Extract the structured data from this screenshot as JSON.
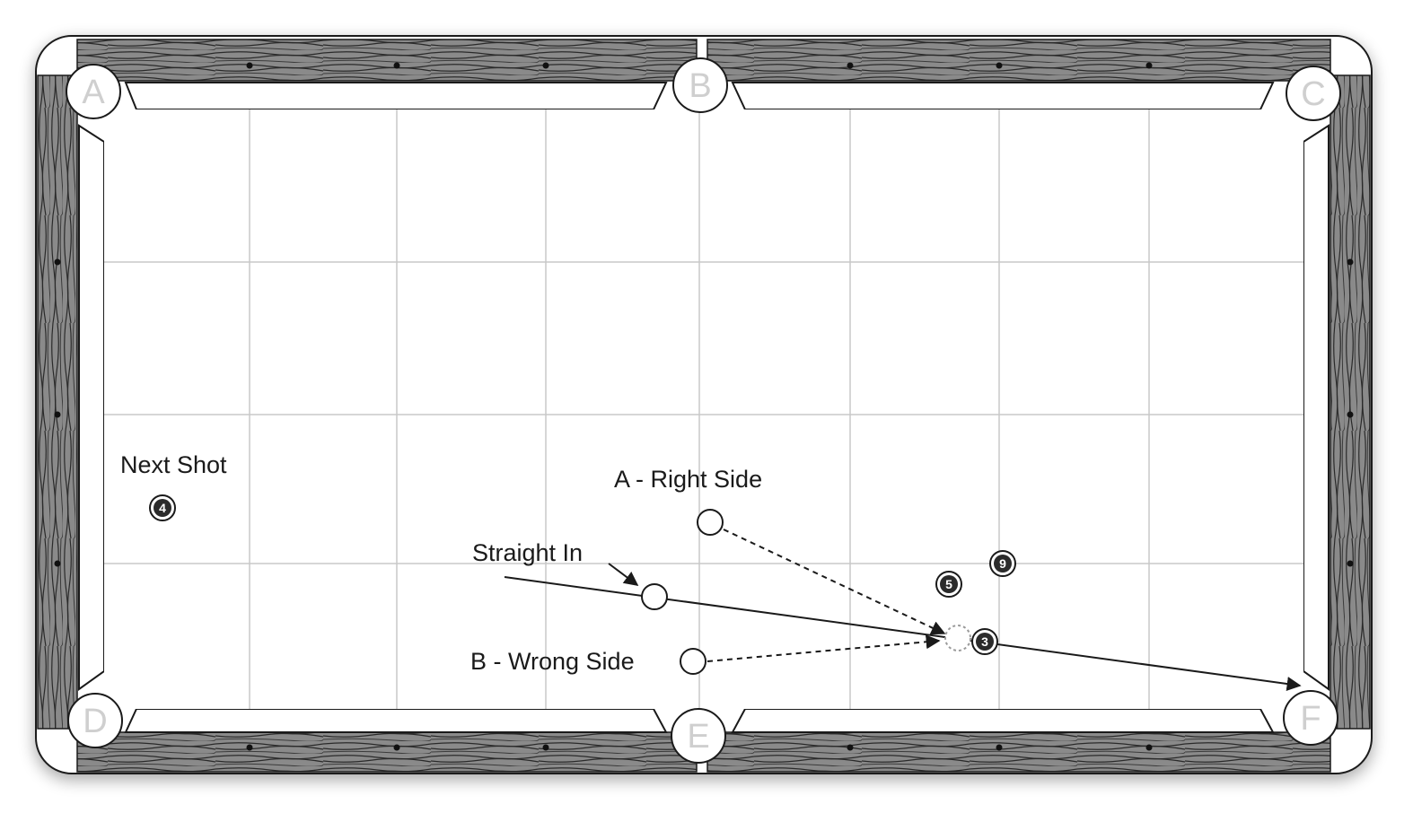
{
  "pockets": [
    {
      "id": "A",
      "label": "A"
    },
    {
      "id": "B",
      "label": "B"
    },
    {
      "id": "C",
      "label": "C"
    },
    {
      "id": "D",
      "label": "D"
    },
    {
      "id": "E",
      "label": "E"
    },
    {
      "id": "F",
      "label": "F"
    }
  ],
  "labels": {
    "next_shot": "Next Shot",
    "right_side": "A - Right Side",
    "straight_in": "Straight In",
    "wrong_side": "B - Wrong Side"
  },
  "balls": [
    {
      "number": "4"
    },
    {
      "number": "9"
    },
    {
      "number": "5"
    },
    {
      "number": "3"
    }
  ],
  "colors": {
    "rail_wood": "#7a7a7a",
    "cloth": "#ffffff",
    "grid": "#c8c8c8",
    "ball": "#2b2b2b"
  }
}
